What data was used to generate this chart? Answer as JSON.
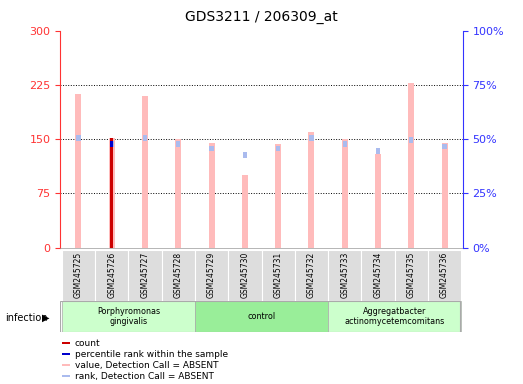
{
  "title": "GDS3211 / 206309_at",
  "samples": [
    "GSM245725",
    "GSM245726",
    "GSM245727",
    "GSM245728",
    "GSM245729",
    "GSM245730",
    "GSM245731",
    "GSM245732",
    "GSM245733",
    "GSM245734",
    "GSM245735",
    "GSM245736"
  ],
  "groups": [
    {
      "name": "Porphyromonas\ngingivalis",
      "start": 0,
      "end": 4,
      "color": "#ccffcc"
    },
    {
      "name": "control",
      "start": 4,
      "end": 8,
      "color": "#99ee99"
    },
    {
      "name": "Aggregatbacter\nactinomycetemcomitans",
      "start": 8,
      "end": 12,
      "color": "#ccffcc"
    }
  ],
  "value_bars": [
    213,
    152,
    210,
    150,
    145,
    100,
    143,
    160,
    150,
    130,
    228,
    145
  ],
  "rank_bars": [
    52,
    49,
    52,
    49,
    47,
    44,
    47,
    52,
    49,
    46,
    51,
    48
  ],
  "count_value": 152,
  "count_sample_idx": 1,
  "percentile_rank_value": 49,
  "percentile_rank_sample_idx": 1,
  "left_ylim": [
    0,
    300
  ],
  "right_ylim": [
    0,
    100
  ],
  "left_yticks": [
    0,
    75,
    150,
    225,
    300
  ],
  "right_yticks": [
    0,
    25,
    50,
    75,
    100
  ],
  "right_yticklabels": [
    "0%",
    "25%",
    "50%",
    "75%",
    "100%"
  ],
  "value_color": "#ffbbbb",
  "rank_color": "#aabbee",
  "count_color": "#cc0000",
  "percentile_color": "#0000cc",
  "axis_color_left": "#ff3333",
  "axis_color_right": "#3333ff",
  "background_color": "#ffffff",
  "legend_items": [
    {
      "color": "#cc0000",
      "label": "count"
    },
    {
      "color": "#0000cc",
      "label": "percentile rank within the sample"
    },
    {
      "color": "#ffbbbb",
      "label": "value, Detection Call = ABSENT"
    },
    {
      "color": "#aabbee",
      "label": "rank, Detection Call = ABSENT"
    }
  ]
}
